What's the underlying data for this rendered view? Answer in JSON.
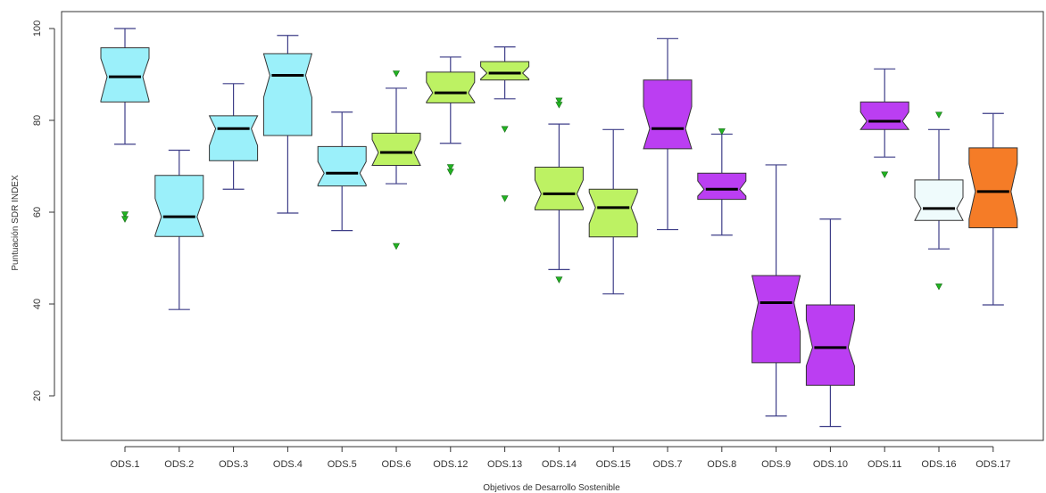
{
  "chart_data": {
    "type": "boxplot",
    "title": "",
    "xlabel": "Objetivos de Desarrollo Sostenible",
    "ylabel": "Puntuación SDR INDEX",
    "ylim": [
      10,
      103
    ],
    "yticks": [
      20,
      40,
      60,
      80,
      100
    ],
    "notched": true,
    "categories": [
      "ODS.1",
      "ODS.2",
      "ODS.3",
      "ODS.4",
      "ODS.5",
      "ODS.6",
      "ODS.12",
      "ODS.13",
      "ODS.14",
      "ODS.15",
      "ODS.7",
      "ODS.8",
      "ODS.9",
      "ODS.10",
      "ODS.11",
      "ODS.16",
      "ODS.17"
    ],
    "colors": {
      "cyan": "#9bf0fa",
      "green": "#bdf263",
      "purple": "#bb3ef2",
      "pale": "#effbfc",
      "orange": "#f57c27",
      "whisker": "#3e3e88",
      "median": "#000000",
      "outlier": "#21b321"
    },
    "boxes": [
      {
        "label": "ODS.1",
        "color": "cyan",
        "min": 74.8,
        "q1": 84.0,
        "median": 89.5,
        "q3": 95.8,
        "max": 100.0,
        "notch_low": 84.3,
        "notch_high": 93.5,
        "outliers": [
          59.5,
          58.5
        ]
      },
      {
        "label": "ODS.2",
        "color": "cyan",
        "min": 38.8,
        "q1": 54.7,
        "median": 59.0,
        "q3": 68.0,
        "max": 73.5,
        "notch_low": 55.0,
        "notch_high": 63.0,
        "outliers": []
      },
      {
        "label": "ODS.3",
        "color": "cyan",
        "min": 65.0,
        "q1": 71.2,
        "median": 78.2,
        "q3": 81.0,
        "max": 88.0,
        "notch_low": 74.5,
        "notch_high": 81.0,
        "outliers": []
      },
      {
        "label": "ODS.4",
        "color": "cyan",
        "min": 59.8,
        "q1": 76.7,
        "median": 89.8,
        "q3": 94.5,
        "max": 98.5,
        "notch_low": 85.0,
        "notch_high": 94.5,
        "outliers": []
      },
      {
        "label": "ODS.5",
        "color": "cyan",
        "min": 56.0,
        "q1": 65.7,
        "median": 68.5,
        "q3": 74.3,
        "max": 81.8,
        "notch_low": 66.0,
        "notch_high": 71.0,
        "outliers": []
      },
      {
        "label": "ODS.6",
        "color": "green",
        "min": 66.2,
        "q1": 70.2,
        "median": 73.0,
        "q3": 77.2,
        "max": 87.0,
        "notch_low": 70.2,
        "notch_high": 75.8,
        "outliers": [
          90.2,
          52.6
        ]
      },
      {
        "label": "ODS.12",
        "color": "green",
        "min": 75.0,
        "q1": 83.8,
        "median": 86.0,
        "q3": 90.5,
        "max": 93.8,
        "notch_low": 84.0,
        "notch_high": 88.3,
        "outliers": [
          69.8,
          68.8
        ]
      },
      {
        "label": "ODS.13",
        "color": "green",
        "min": 84.7,
        "q1": 88.8,
        "median": 90.3,
        "q3": 92.8,
        "max": 96.0,
        "notch_low": 89.0,
        "notch_high": 91.7,
        "outliers": [
          78.1,
          63.0
        ]
      },
      {
        "label": "ODS.14",
        "color": "green",
        "min": 47.5,
        "q1": 60.5,
        "median": 64.0,
        "q3": 69.8,
        "max": 79.2,
        "notch_low": 61.0,
        "notch_high": 67.0,
        "outliers": [
          84.3,
          83.4,
          45.3
        ]
      },
      {
        "label": "ODS.15",
        "color": "green",
        "min": 42.2,
        "q1": 54.6,
        "median": 61.0,
        "q3": 65.0,
        "max": 78.0,
        "notch_low": 57.5,
        "notch_high": 64.3,
        "outliers": []
      },
      {
        "label": "ODS.7",
        "color": "purple",
        "min": 56.2,
        "q1": 73.8,
        "median": 78.2,
        "q3": 88.8,
        "max": 97.8,
        "notch_low": 73.8,
        "notch_high": 83.0,
        "outliers": []
      },
      {
        "label": "ODS.8",
        "color": "purple",
        "min": 55.0,
        "q1": 62.8,
        "median": 65.0,
        "q3": 68.5,
        "max": 77.0,
        "notch_low": 63.5,
        "notch_high": 66.8,
        "outliers": [
          77.6
        ]
      },
      {
        "label": "ODS.9",
        "color": "purple",
        "min": 15.6,
        "q1": 27.2,
        "median": 40.3,
        "q3": 46.2,
        "max": 70.3,
        "notch_low": 34.0,
        "notch_high": 46.2,
        "outliers": []
      },
      {
        "label": "ODS.10",
        "color": "purple",
        "min": 13.3,
        "q1": 22.3,
        "median": 30.5,
        "q3": 39.8,
        "max": 58.5,
        "notch_low": 26.5,
        "notch_high": 36.5,
        "outliers": []
      },
      {
        "label": "ODS.11",
        "color": "purple",
        "min": 72.0,
        "q1": 78.0,
        "median": 79.8,
        "q3": 84.0,
        "max": 91.2,
        "notch_low": 78.0,
        "notch_high": 81.8,
        "outliers": [
          68.2
        ]
      },
      {
        "label": "ODS.16",
        "color": "pale",
        "min": 52.0,
        "q1": 58.2,
        "median": 60.8,
        "q3": 67.0,
        "max": 78.0,
        "notch_low": 58.2,
        "notch_high": 63.2,
        "outliers": [
          81.2,
          43.8
        ]
      },
      {
        "label": "ODS.17",
        "color": "orange",
        "min": 39.8,
        "q1": 56.6,
        "median": 64.5,
        "q3": 74.0,
        "max": 81.5,
        "notch_low": 58.5,
        "notch_high": 70.5,
        "outliers": []
      }
    ]
  }
}
